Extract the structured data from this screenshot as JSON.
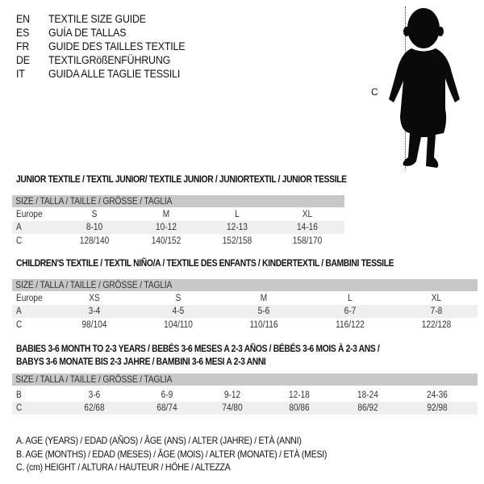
{
  "header": {
    "languages": [
      {
        "code": "EN",
        "text": "TEXTILE SIZE GUIDE"
      },
      {
        "code": "ES",
        "text": "GUÍA DE TALLAS"
      },
      {
        "code": "FR",
        "text": "GUIDE DES TAILLES TEXTILE"
      },
      {
        "code": "DE",
        "text": "TEXTILGRößENFÜHRUNG"
      },
      {
        "code": "IT",
        "text": "GUIDA ALLE TAGLIE TESSILI"
      }
    ]
  },
  "figure": {
    "measure_label": "C",
    "icon": "child-silhouette-icon"
  },
  "colors": {
    "header_bar": "#c8c8c8",
    "row_shade": "#efefef"
  },
  "sections": [
    {
      "title_lines": [
        "JUNIOR TEXTILE / TEXTIL JUNIOR/ TEXTILE JUNIOR / JUNIORTEXTIL / JUNIOR TESSILE"
      ],
      "header": "SIZE / TALLA / TAILLE / GRÖSSE / TAGLIA",
      "rows": [
        {
          "label": "Europe",
          "cells": [
            "S",
            "M",
            "L",
            "XL"
          ]
        },
        {
          "label": "A",
          "cells": [
            "8-10",
            "10-12",
            "12-13",
            "14-16"
          ]
        },
        {
          "label": "C",
          "cells": [
            "128/140",
            "140/152",
            "152/158",
            "158/170"
          ]
        }
      ]
    },
    {
      "title_lines": [
        "CHILDREN'S TEXTILE / TEXTIL NIÑO/A / TEXTILE DES ENFANTS / KINDERTEXTIL / BAMBINI TESSILE"
      ],
      "header": "SIZE / TALLA / TAILLE / GRÖSSE / TAGLIA",
      "rows": [
        {
          "label": "Europe",
          "cells": [
            "XS",
            "S",
            "M",
            "L",
            "XL"
          ]
        },
        {
          "label": "A",
          "cells": [
            "3-4",
            "4-5",
            "5-6",
            "6-7",
            "7-8"
          ]
        },
        {
          "label": "C",
          "cells": [
            "98/104",
            "104/110",
            "110/116",
            "116/122",
            "122/128"
          ]
        }
      ]
    },
    {
      "title_lines": [
        "BABIES 3-6 MONTH TO 2-3 YEARS / BEBÉS 3-6 MESES A 2-3 AÑOS / BÉBÉS 3-6 MOIS À 2-3 ANS /",
        "BABYS 3-6 MONATE BIS 2-3 JAHRE / BAMBINI 3-6 MESI A 2-3 ANNI"
      ],
      "header": "SIZE / TALLA / TAILLE / GRÖSSE / TAGLIA",
      "rows": [
        {
          "label": "B",
          "cells": [
            "3-6",
            "6-9",
            "9-12",
            "12-18",
            "18-24",
            "24-36"
          ]
        },
        {
          "label": "C",
          "cells": [
            "62/68",
            "68/74",
            "74/80",
            "80/86",
            "86/92",
            "92/98"
          ]
        }
      ]
    }
  ],
  "legend": [
    "A. AGE (YEARS) / EDAD (AÑOS) / ÂGE (ANS) / ALTER (JAHRE) / ETÀ (ANNI)",
    "B. AGE (MONTHS) / EDAD (MESES) / ÂGE (MOIS) / ALTER (MONATE) / ETÀ (MESI)",
    "C. (cm) HEIGHT / ALTURA / HAUTEUR / HÖHE / ALTEZZA"
  ]
}
